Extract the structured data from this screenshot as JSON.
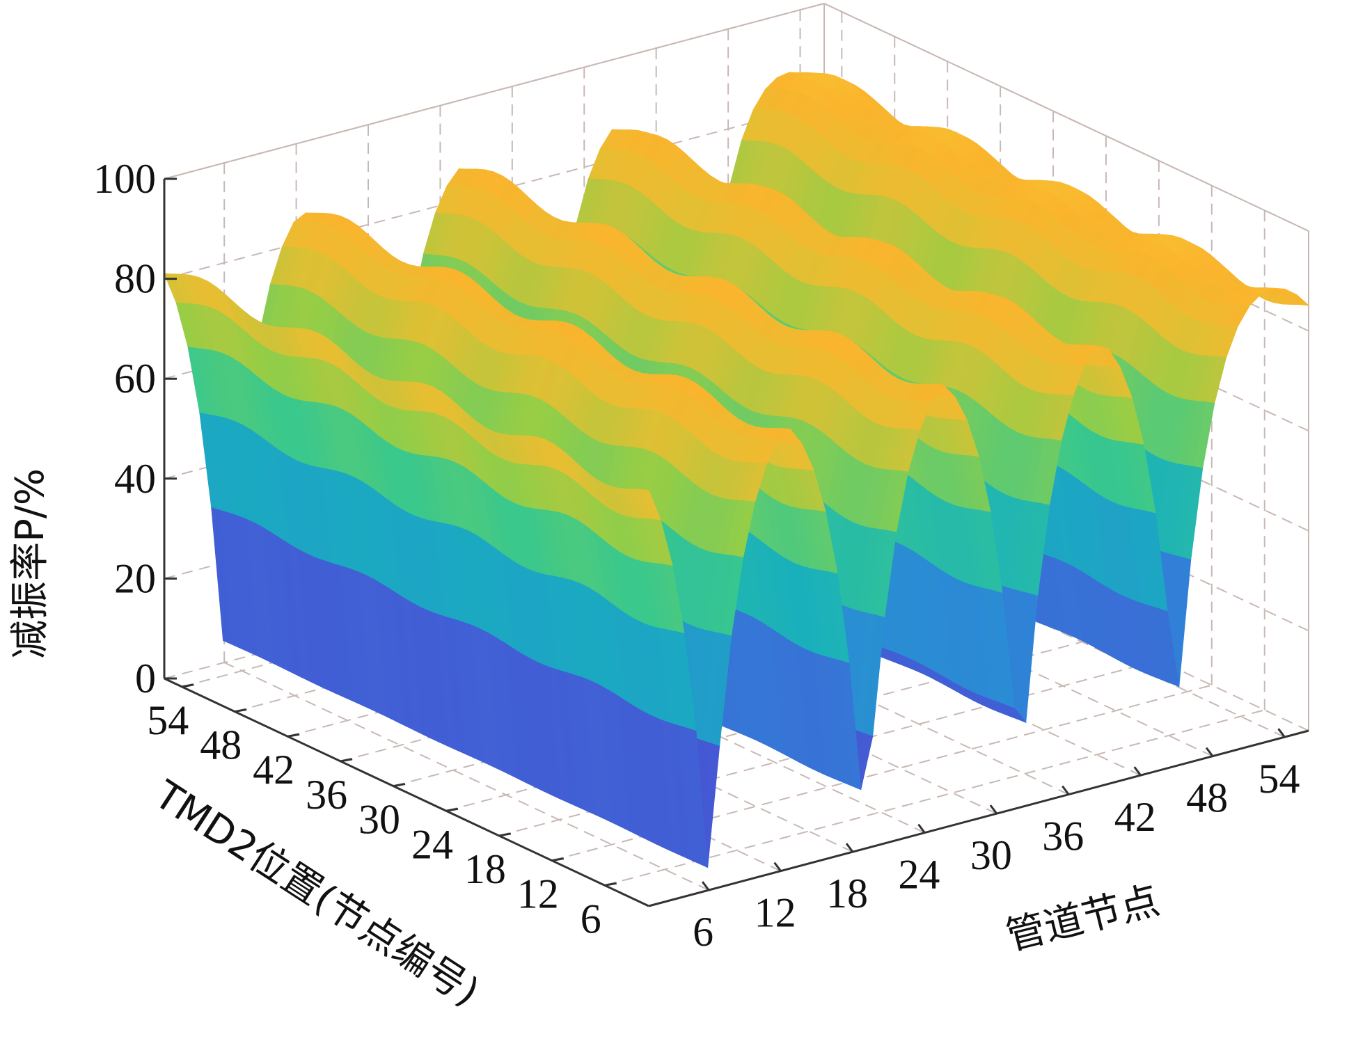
{
  "chart_data": {
    "type": "surface3d",
    "title": "",
    "xlabel": "管道节点",
    "ylabel": "TMD2位置(节点编号)",
    "zlabel": "减振率P/%",
    "x_ticks": [
      "6",
      "12",
      "18",
      "24",
      "30",
      "36",
      "42",
      "48",
      "54"
    ],
    "y_ticks": [
      "54",
      "48",
      "42",
      "36",
      "30",
      "24",
      "18",
      "12",
      "6"
    ],
    "z_ticks": [
      "0",
      "20",
      "40",
      "60",
      "80",
      "100"
    ],
    "xlim": [
      1,
      56
    ],
    "ylim": [
      1,
      56
    ],
    "zlim": [
      0,
      100
    ],
    "grid": true,
    "colormap": "parula",
    "description_of_surface": {
      "dip_nodes": [
        6,
        19,
        32,
        45
      ],
      "dip_min_values": [
        2,
        2,
        4,
        12
      ],
      "plateau_max": 92,
      "ridge_valley_pattern": "peaks between dip lines"
    }
  }
}
